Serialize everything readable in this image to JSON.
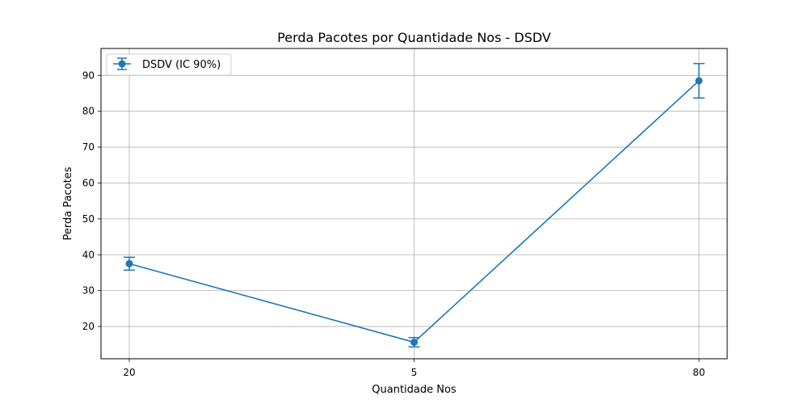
{
  "chart_data": {
    "type": "line",
    "title": "Perda Pacotes por Quantidade Nos - DSDV",
    "xlabel": "Quantidade Nos",
    "ylabel": "Perda Pacotes",
    "categories": [
      "20",
      "5",
      "80"
    ],
    "ylim": [
      11,
      97.5
    ],
    "yticks": [
      20,
      30,
      40,
      50,
      60,
      70,
      80,
      90
    ],
    "grid": true,
    "legend_position": "top-left",
    "series": [
      {
        "name": "DSDV (IC 90%)",
        "color": "#1f77b4",
        "values": [
          37.5,
          15.6,
          88.5
        ],
        "error_low": [
          35.7,
          14.3,
          83.7
        ],
        "error_high": [
          39.3,
          16.9,
          93.3
        ]
      }
    ]
  }
}
